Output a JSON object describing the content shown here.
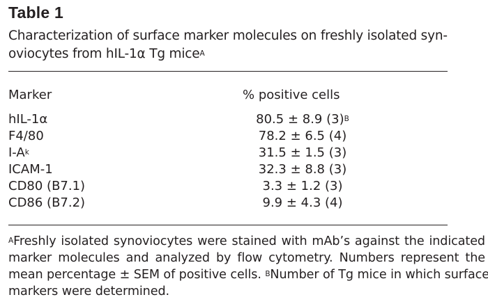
{
  "table": {
    "label": "Table 1",
    "caption_line1": "Characterization of surface marker molecules on freshly isolated syn-",
    "caption_line2": "oviocytes from hIL-1α Tg mice",
    "caption_sup": "A",
    "headers": {
      "marker": "Marker",
      "value": "% positive cells"
    },
    "rows": [
      {
        "marker": "hIL-1α",
        "marker_sup": "",
        "value": "80.5 ± 8.9 (3)",
        "value_sup": "B"
      },
      {
        "marker": "F4/80",
        "marker_sup": "",
        "value": "78.2 ± 6.5 (4)",
        "value_sup": ""
      },
      {
        "marker": "I-A",
        "marker_sup": "k",
        "value": "31.5 ± 1.5 (3)",
        "value_sup": ""
      },
      {
        "marker": "ICAM-1",
        "marker_sup": "",
        "value": "32.3 ± 8.8 (3)",
        "value_sup": ""
      },
      {
        "marker": "CD80 (B7.1)",
        "marker_sup": "",
        "value": "3.3 ± 1.2 (3)",
        "value_sup": ""
      },
      {
        "marker": "CD86 (B7.2)",
        "marker_sup": "",
        "value": "9.9 ± 4.3 (4)",
        "value_sup": ""
      }
    ],
    "footnote": {
      "a_mark": "A",
      "line1": "Freshly isolated synoviocytes were stained with mAb’s against the indicated",
      "line2": "marker molecules and analyzed by flow cytometry. Numbers represent the",
      "line3a": "mean percentage ± SEM of positive cells. ",
      "b_mark": "B",
      "line3b": "Number of Tg mice in which surface",
      "line4": "markers were determined."
    }
  }
}
